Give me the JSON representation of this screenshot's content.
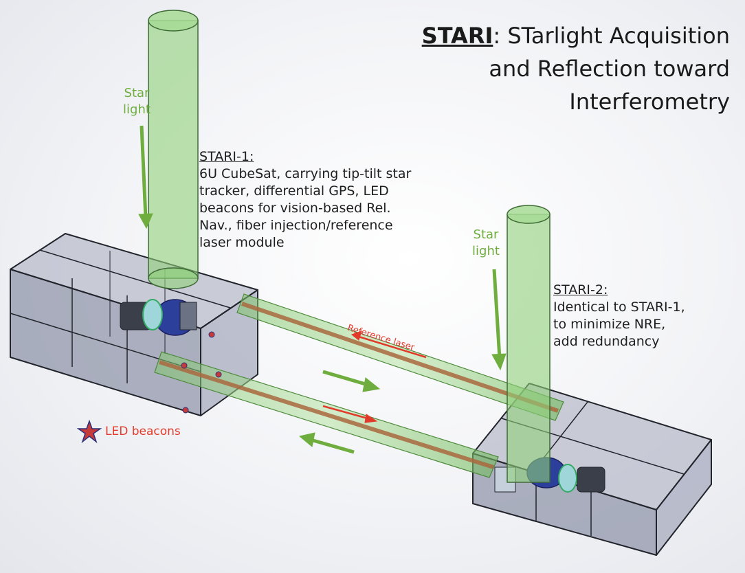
{
  "title": {
    "acronym": "STARI",
    "rest": ": STarlight Acquisition and Reflection toward Interferometry"
  },
  "stari1": {
    "heading": "STARI-1:",
    "line1": "6U CubeSat, carrying tip-tilt star",
    "line2": "tracker,  differential GPS, LED",
    "line3": "beacons for vision-based Rel.",
    "line4": "Nav., fiber injection/reference",
    "line5": "laser module"
  },
  "stari2": {
    "heading": "STARI-2:",
    "line1": "Identical to STARI-1,",
    "line2": "to minimize NRE,",
    "line3": "add redundancy"
  },
  "starlight_left": {
    "line1": "Star",
    "line2": "light"
  },
  "starlight_right": {
    "line1": "Star",
    "line2": "light"
  },
  "reference_laser": "Reference laser",
  "led_beacons": "LED beacons",
  "colors": {
    "starlight_green": "#6fae3e",
    "beam_green": "#8fd07a",
    "laser_red": "#e23a2a",
    "fiber_brown": "#a9683e",
    "cubesat_fill": "#8e93a8",
    "led_star_fill": "#c73a3a",
    "led_star_stroke": "#2b2f7a"
  }
}
